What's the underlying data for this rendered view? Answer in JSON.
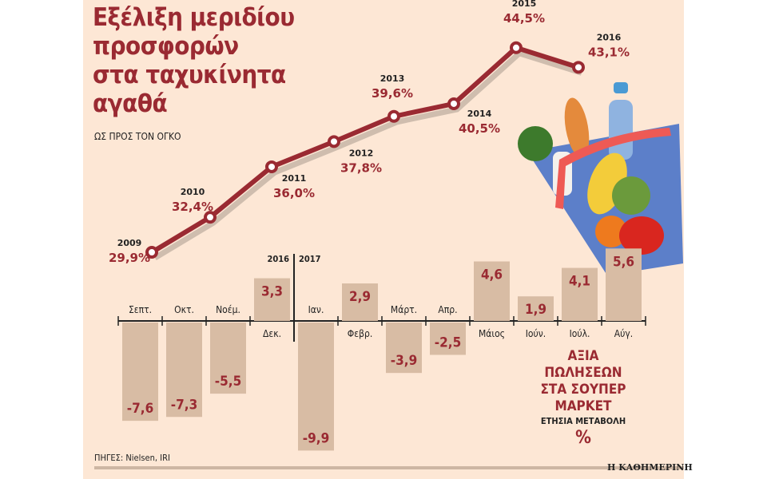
{
  "title_lines": [
    "Εξέλιξη μεριδίου",
    "προσφορών",
    "στα ταχυκίνητα",
    "αγαθά"
  ],
  "subtitle": "ΩΣ ΠΡΟΣ ΤΟΝ ΟΓΚΟ",
  "bar_legend": {
    "lines": [
      "ΑΞΙΑ",
      "ΠΩΛΗΣΕΩΝ",
      "ΣΤΑ ΣΟΥΠΕΡ",
      "ΜΑΡΚΕΤ"
    ],
    "sub": "ΕΤΗΣΙΑ ΜΕΤΑΒΟΛΗ",
    "unit": "%"
  },
  "source": "ΠΗΓΕΣ: Nielsen, IRI",
  "brand": "Η ΚΑΘΗΜΕΡΙΝΗ",
  "colors": {
    "accent": "#9a2a32",
    "bar": "#d8bca4",
    "background": "#fde7d5"
  },
  "chart_data": [
    {
      "type": "line",
      "title": "Εξέλιξη μεριδίου προσφορών στα ταχυκίνητα αγαθά",
      "subtitle": "ΩΣ ΠΡΟΣ ΤΟΝ ΟΓΚΟ",
      "x": [
        "2009",
        "2010",
        "2011",
        "2012",
        "2013",
        "2014",
        "2015",
        "2016"
      ],
      "values": [
        29.9,
        32.4,
        36.0,
        37.8,
        39.6,
        40.5,
        44.5,
        43.1
      ],
      "labels": [
        "29,9%",
        "32,4%",
        "36,0%",
        "37,8%",
        "39,6%",
        "40,5%",
        "44,5%",
        "43,1%"
      ],
      "label_position": [
        "below",
        "above",
        "below",
        "below",
        "above",
        "below",
        "above",
        "above"
      ]
    },
    {
      "type": "bar",
      "title": "ΑΞΙΑ ΠΩΛΗΣΕΩΝ ΣΤΑ ΣΟΥΠΕΡ ΜΑΡΚΕΤ",
      "subtitle": "ΕΤΗΣΙΑ ΜΕΤΑΒΟΛΗ %",
      "categories": [
        "Σεπτ.",
        "Οκτ.",
        "Νοέμ.",
        "Δεκ.",
        "Ιαν.",
        "Φεβρ.",
        "Μάρτ.",
        "Απρ.",
        "Μάιος",
        "Ιούν.",
        "Ιούλ.",
        "Αύγ."
      ],
      "values": [
        -7.6,
        -7.3,
        -5.5,
        3.3,
        -9.9,
        2.9,
        -3.9,
        -2.5,
        4.6,
        1.9,
        4.1,
        5.6
      ],
      "labels": [
        "-7,6",
        "-7,3",
        "-5,5",
        "3,3",
        "-9,9",
        "2,9",
        "-3,9",
        "-2,5",
        "4,6",
        "1,9",
        "4,1",
        "5,6"
      ],
      "year_divider": {
        "before": "2016",
        "after": "2017"
      }
    }
  ]
}
